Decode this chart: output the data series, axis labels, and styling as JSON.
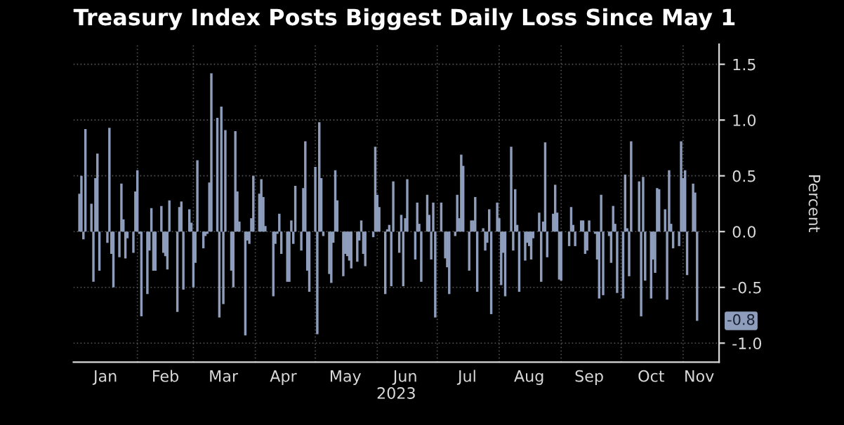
{
  "chart_data": {
    "type": "bar",
    "title": "Treasury Index Posts Biggest Daily Loss Since May 1",
    "xlabel": "2023",
    "ylabel": "Percent",
    "color": "#8d9dbb",
    "x": [
      "2023-01-03",
      "2023-01-04",
      "2023-01-05",
      "2023-01-06",
      "2023-01-09",
      "2023-01-10",
      "2023-01-11",
      "2023-01-12",
      "2023-01-13",
      "2023-01-17",
      "2023-01-18",
      "2023-01-19",
      "2023-01-20",
      "2023-01-23",
      "2023-01-24",
      "2023-01-25",
      "2023-01-26",
      "2023-01-27",
      "2023-01-30",
      "2023-01-31",
      "2023-02-01",
      "2023-02-02",
      "2023-02-03",
      "2023-02-06",
      "2023-02-07",
      "2023-02-08",
      "2023-02-09",
      "2023-02-10",
      "2023-02-13",
      "2023-02-14",
      "2023-02-15",
      "2023-02-16",
      "2023-02-17",
      "2023-02-21",
      "2023-02-22",
      "2023-02-23",
      "2023-02-24",
      "2023-02-27",
      "2023-02-28",
      "2023-03-01",
      "2023-03-02",
      "2023-03-03",
      "2023-03-06",
      "2023-03-07",
      "2023-03-08",
      "2023-03-09",
      "2023-03-10",
      "2023-03-13",
      "2023-03-14",
      "2023-03-15",
      "2023-03-16",
      "2023-03-17",
      "2023-03-20",
      "2023-03-21",
      "2023-03-22",
      "2023-03-23",
      "2023-03-24",
      "2023-03-27",
      "2023-03-28",
      "2023-03-29",
      "2023-03-30",
      "2023-03-31",
      "2023-04-03",
      "2023-04-04",
      "2023-04-05",
      "2023-04-06",
      "2023-04-10",
      "2023-04-11",
      "2023-04-12",
      "2023-04-13",
      "2023-04-14",
      "2023-04-17",
      "2023-04-18",
      "2023-04-19",
      "2023-04-20",
      "2023-04-21",
      "2023-04-24",
      "2023-04-25",
      "2023-04-26",
      "2023-04-27",
      "2023-04-28",
      "2023-05-01",
      "2023-05-02",
      "2023-05-03",
      "2023-05-04",
      "2023-05-05",
      "2023-05-08",
      "2023-05-09",
      "2023-05-10",
      "2023-05-11",
      "2023-05-12",
      "2023-05-15",
      "2023-05-16",
      "2023-05-17",
      "2023-05-18",
      "2023-05-19",
      "2023-05-22",
      "2023-05-23",
      "2023-05-24",
      "2023-05-25",
      "2023-05-26",
      "2023-05-30",
      "2023-05-31",
      "2023-06-01",
      "2023-06-02",
      "2023-06-05",
      "2023-06-06",
      "2023-06-07",
      "2023-06-08",
      "2023-06-09",
      "2023-06-12",
      "2023-06-13",
      "2023-06-14",
      "2023-06-15",
      "2023-06-16",
      "2023-06-20",
      "2023-06-21",
      "2023-06-22",
      "2023-06-23",
      "2023-06-26",
      "2023-06-27",
      "2023-06-28",
      "2023-06-29",
      "2023-06-30",
      "2023-07-03",
      "2023-07-05",
      "2023-07-06",
      "2023-07-07",
      "2023-07-10",
      "2023-07-11",
      "2023-07-12",
      "2023-07-13",
      "2023-07-14",
      "2023-07-17",
      "2023-07-18",
      "2023-07-19",
      "2023-07-20",
      "2023-07-21",
      "2023-07-24",
      "2023-07-25",
      "2023-07-26",
      "2023-07-27",
      "2023-07-28",
      "2023-07-31",
      "2023-08-01",
      "2023-08-02",
      "2023-08-03",
      "2023-08-04",
      "2023-08-07",
      "2023-08-08",
      "2023-08-09",
      "2023-08-10",
      "2023-08-11",
      "2023-08-14",
      "2023-08-15",
      "2023-08-16",
      "2023-08-17",
      "2023-08-18",
      "2023-08-21",
      "2023-08-22",
      "2023-08-23",
      "2023-08-24",
      "2023-08-25",
      "2023-08-28",
      "2023-08-29",
      "2023-08-30",
      "2023-08-31",
      "2023-09-01",
      "2023-09-05",
      "2023-09-06",
      "2023-09-07",
      "2023-09-08",
      "2023-09-11",
      "2023-09-12",
      "2023-09-13",
      "2023-09-14",
      "2023-09-15",
      "2023-09-18",
      "2023-09-19",
      "2023-09-20",
      "2023-09-21",
      "2023-09-22",
      "2023-09-25",
      "2023-09-26",
      "2023-09-27",
      "2023-09-28",
      "2023-09-29",
      "2023-10-02",
      "2023-10-03",
      "2023-10-04",
      "2023-10-05",
      "2023-10-06",
      "2023-10-10",
      "2023-10-11",
      "2023-10-12",
      "2023-10-13",
      "2023-10-16",
      "2023-10-17",
      "2023-10-18",
      "2023-10-19",
      "2023-10-20",
      "2023-10-23",
      "2023-10-24",
      "2023-10-25",
      "2023-10-26",
      "2023-10-27",
      "2023-10-30",
      "2023-10-31",
      "2023-11-01",
      "2023-11-02",
      "2023-11-03",
      "2023-11-06",
      "2023-11-07",
      "2023-11-08"
    ],
    "values": [
      0.34,
      0.5,
      -0.07,
      0.92,
      0.25,
      -0.45,
      0.48,
      0.7,
      -0.35,
      -0.1,
      0.93,
      -0.2,
      -0.5,
      -0.23,
      0.43,
      0.11,
      -0.24,
      -0.06,
      -0.19,
      0.36,
      0.55,
      -0.02,
      -0.76,
      -0.56,
      -0.17,
      0.21,
      -0.35,
      -0.35,
      0.23,
      -0.19,
      -0.22,
      -0.34,
      0.28,
      -0.72,
      0.22,
      0.27,
      -0.52,
      0.2,
      0.08,
      -0.5,
      -0.28,
      0.64,
      -0.15,
      -0.04,
      -0.02,
      0.44,
      1.42,
      1.02,
      -0.77,
      1.12,
      -0.65,
      0.91,
      -0.35,
      -0.5,
      0.9,
      0.36,
      0.09,
      -0.93,
      -0.08,
      -0.11,
      0.12,
      0.5,
      0.34,
      0.47,
      0.31,
      0.05,
      -0.58,
      -0.11,
      -0.02,
      0.16,
      -0.2,
      -0.45,
      -0.45,
      0.1,
      -0.11,
      0.41,
      -0.17,
      0.39,
      0.81,
      -0.35,
      -0.54,
      0.58,
      -0.92,
      0.98,
      0.48,
      -0.04,
      -0.38,
      -0.46,
      -0.1,
      0.55,
      0.28,
      -0.4,
      -0.2,
      -0.22,
      -0.26,
      -0.33,
      -0.27,
      -0.08,
      0.1,
      -0.2,
      -0.31,
      -0.05,
      0.76,
      0.33,
      0.22,
      -0.56,
      0.02,
      0.06,
      -0.49,
      0.45,
      -0.19,
      0.15,
      -0.49,
      0.12,
      0.47,
      -0.25,
      0.26,
      0.07,
      -0.45,
      0.33,
      0.15,
      -0.25,
      0.26,
      -0.77,
      0.26,
      -0.24,
      -0.32,
      -0.56,
      -0.04,
      0.33,
      0.12,
      0.69,
      0.59,
      -0.35,
      0.1,
      0.1,
      0.31,
      -0.54,
      0.03,
      -0.17,
      -0.1,
      0.2,
      -0.74,
      0.26,
      0.12,
      -0.48,
      -0.19,
      -0.58,
      0.76,
      -0.17,
      0.38,
      0.06,
      -0.54,
      -0.26,
      -0.1,
      -0.13,
      -0.25,
      -0.06,
      0.17,
      -0.45,
      0.09,
      0.8,
      -0.23,
      0.16,
      0.42,
      0.17,
      -0.43,
      -0.44,
      -0.13,
      0.22,
      0.06,
      -0.13,
      0.1,
      0.1,
      -0.2,
      -0.17,
      0.1,
      -0.02,
      -0.25,
      -0.6,
      0.33,
      -0.57,
      -0.04,
      -0.28,
      0.23,
      0.07,
      -0.55,
      -0.6,
      0.51,
      0.03,
      -0.4,
      0.81,
      0.45,
      -0.76,
      0.49,
      -0.44,
      -0.6,
      -0.25,
      -0.37,
      0.39,
      0.38,
      0.2,
      -0.61,
      0.55,
      0.07,
      -0.15,
      -0.13,
      0.81,
      0.48,
      0.55,
      -0.39,
      0.43,
      0.35,
      -0.8
    ],
    "xlim": [
      "2022-12-31",
      "2023-11-19"
    ],
    "xticks": [
      {
        "value": "2023-01-16",
        "label": "Jan"
      },
      {
        "value": "2023-02-01",
        "label": null
      },
      {
        "value": "2023-02-15",
        "label": "Feb"
      },
      {
        "value": "2023-03-01",
        "label": null
      },
      {
        "value": "2023-03-16",
        "label": "Mar"
      },
      {
        "value": "2023-04-01",
        "label": null
      },
      {
        "value": "2023-04-15",
        "label": "Apr"
      },
      {
        "value": "2023-05-01",
        "label": null
      },
      {
        "value": "2023-05-16",
        "label": "May"
      },
      {
        "value": "2023-06-01",
        "label": null
      },
      {
        "value": "2023-06-15",
        "label": "Jun"
      },
      {
        "value": "2023-07-01",
        "label": null
      },
      {
        "value": "2023-07-16",
        "label": "Jul"
      },
      {
        "value": "2023-08-01",
        "label": null
      },
      {
        "value": "2023-08-16",
        "label": "Aug"
      },
      {
        "value": "2023-09-01",
        "label": null
      },
      {
        "value": "2023-09-15",
        "label": "Sep"
      },
      {
        "value": "2023-10-01",
        "label": null
      },
      {
        "value": "2023-10-16",
        "label": "Oct"
      },
      {
        "value": "2023-11-01",
        "label": null
      },
      {
        "value": "2023-11-09",
        "label": "Nov"
      }
    ],
    "ylim": [
      -1.17,
      1.68
    ],
    "yticks": [
      {
        "value": -1,
        "label": "-1.0"
      },
      {
        "value": -0.5,
        "label": "-0.5"
      },
      {
        "value": 0,
        "label": "0.0"
      },
      {
        "value": 0.5,
        "label": "0.5"
      },
      {
        "value": 1,
        "label": "1.0"
      },
      {
        "value": 1.5,
        "label": "1.5"
      }
    ],
    "grid": true,
    "annotations": [
      {
        "text": "-0.8",
        "x": "2023-11-08",
        "y": -0.8
      }
    ]
  }
}
